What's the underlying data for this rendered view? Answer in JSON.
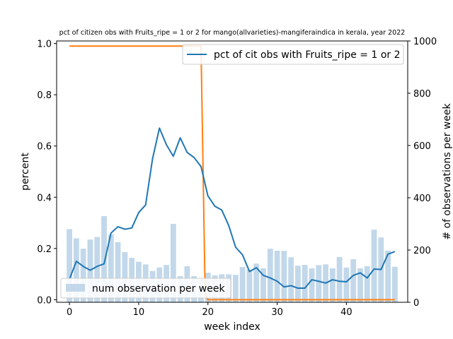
{
  "chart_data": {
    "type": "bar+line",
    "title": "pct of citizen obs with Fruits_ripe = 1 or 2 for mango(allvarieties)-mangiferaindica in kerala, year 2022",
    "xlabel": "week index",
    "ylabel_left": "percent",
    "ylabel_right": "# of observations per week",
    "xlim": [
      -1.85,
      48.85
    ],
    "ylim_left": [
      -0.01,
      1.01
    ],
    "ylim_right": [
      0,
      1000
    ],
    "xticks": [
      "0",
      "10",
      "20",
      "30",
      "40"
    ],
    "yticks_left": [
      "0.0",
      "0.2",
      "0.4",
      "0.6",
      "0.8",
      "1.0"
    ],
    "yticks_right": [
      "0",
      "200",
      "400",
      "600",
      "800",
      "1000"
    ],
    "legend_top": "pct of cit obs with Fruits_ripe = 1 or 2",
    "legend_bottom": "num observation per week",
    "colors": {
      "bars": "#c2d8ea",
      "line": "#1f77b4",
      "orange": "#ff7f0e"
    },
    "weeks": [
      0,
      1,
      2,
      3,
      4,
      5,
      6,
      7,
      8,
      9,
      10,
      11,
      12,
      13,
      14,
      15,
      16,
      17,
      18,
      19,
      20,
      21,
      22,
      23,
      24,
      25,
      26,
      27,
      28,
      29,
      30,
      31,
      32,
      33,
      34,
      35,
      36,
      37,
      38,
      39,
      40,
      41,
      42,
      43,
      44,
      45,
      46,
      47
    ],
    "bar_values": [
      280,
      245,
      205,
      240,
      250,
      330,
      260,
      230,
      192,
      170,
      155,
      145,
      120,
      133,
      143,
      300,
      100,
      138,
      100,
      90,
      113,
      103,
      107,
      107,
      105,
      135,
      125,
      148,
      130,
      205,
      197,
      197,
      172,
      140,
      143,
      130,
      142,
      145,
      130,
      173,
      133,
      165,
      130,
      138,
      278,
      248,
      198,
      136
    ],
    "pct_values": [
      0.08,
      0.15,
      0.13,
      0.115,
      0.13,
      0.14,
      0.26,
      0.285,
      0.275,
      0.28,
      0.34,
      0.37,
      0.55,
      0.67,
      0.605,
      0.56,
      0.632,
      0.575,
      0.555,
      0.52,
      0.405,
      0.365,
      0.35,
      0.29,
      0.205,
      0.175,
      0.11,
      0.125,
      0.095,
      0.085,
      0.072,
      0.05,
      0.055,
      0.045,
      0.045,
      0.078,
      0.072,
      0.065,
      0.078,
      0.072,
      0.07,
      0.095,
      0.105,
      0.085,
      0.12,
      0.118,
      0.178,
      0.188
    ],
    "orange_line": {
      "x": [
        0,
        19,
        19.6,
        20,
        47
      ],
      "y": [
        0.99,
        0.99,
        0.02,
        0,
        0
      ]
    }
  }
}
